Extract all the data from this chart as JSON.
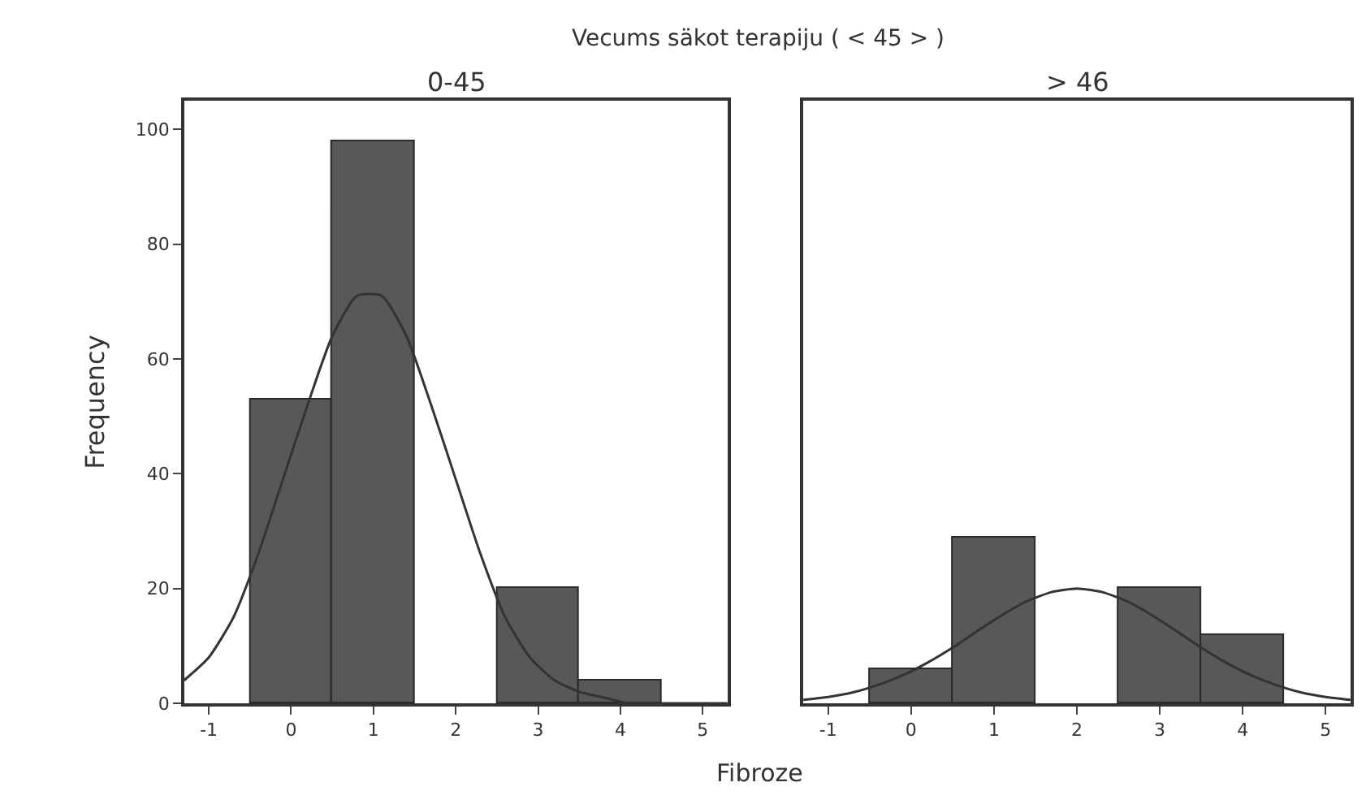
{
  "chart_data": [
    {
      "type": "histogram",
      "title": "0-45",
      "ylabel": "Frequency",
      "xlabel": "Fibroze",
      "annotations": [
        "Vecums säkot terapiju ( < 45 > )"
      ],
      "bins": [
        -0.5,
        0.5,
        1.5,
        2.5,
        3.5,
        4.5
      ],
      "values": [
        53,
        98,
        0,
        20,
        4
      ],
      "color": "#585858",
      "series": [
        {
          "type": "line",
          "color": "#333333",
          "x": [
            -1.3,
            -1.0,
            -0.7,
            -0.4,
            -0.1,
            0.2,
            0.5,
            0.8,
            1.1,
            1.4,
            1.7,
            2.0,
            2.3,
            2.6,
            2.9,
            3.2,
            3.5,
            3.8,
            4.1,
            4.4,
            4.7,
            5.0,
            5.3
          ],
          "values": [
            4,
            8,
            15,
            26,
            39,
            52,
            64,
            71,
            71,
            64,
            52,
            39,
            26,
            15,
            8,
            4,
            2,
            1,
            0,
            0,
            0,
            0,
            0
          ]
        }
      ],
      "xlim": [
        -1.3,
        5.3
      ],
      "xticks": [
        -1,
        0,
        1,
        2,
        3,
        4,
        5
      ],
      "ylim": [
        0,
        105
      ],
      "yticks": [
        0,
        20,
        40,
        60,
        80,
        100
      ]
    },
    {
      "type": "histogram",
      "title": "> 46",
      "bins": [
        -0.5,
        0.5,
        1.5,
        2.5,
        3.5,
        4.5
      ],
      "values": [
        6,
        29,
        0,
        20,
        12
      ],
      "color": "#585858",
      "series": [
        {
          "type": "line",
          "color": "#333333",
          "x": [
            -1.3,
            -1.0,
            -0.7,
            -0.4,
            -0.1,
            0.2,
            0.5,
            0.8,
            1.1,
            1.4,
            1.7,
            2.0,
            2.3,
            2.6,
            2.9,
            3.2,
            3.5,
            3.8,
            4.1,
            4.4,
            4.7,
            5.0,
            5.3
          ],
          "values": [
            0.6,
            1.1,
            1.9,
            3.2,
            4.9,
            7.1,
            9.7,
            12.6,
            15.4,
            17.8,
            19.4,
            20,
            19.4,
            17.8,
            15.4,
            12.6,
            9.7,
            7.1,
            4.9,
            3.2,
            1.9,
            1.1,
            0.6
          ]
        }
      ],
      "xlim": [
        -1.3,
        5.3
      ],
      "xticks": [
        -1,
        0,
        1,
        2,
        3,
        4,
        5
      ],
      "ylim": [
        0,
        105
      ],
      "yticks": [
        0,
        20,
        40,
        60,
        80,
        100
      ],
      "tick_labels": "x"
    }
  ]
}
